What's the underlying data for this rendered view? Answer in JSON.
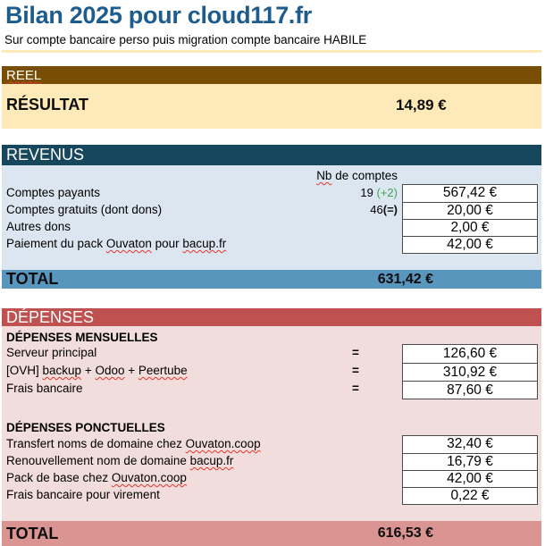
{
  "page": {
    "title": "Bilan 2025 pour cloud117.fr",
    "subtitle": "Sur compte bancaire perso puis migration compte bancaire HABILE"
  },
  "reel": {
    "header": "REEL",
    "result_label": "RÉSULTAT",
    "result_value": "14,89 €"
  },
  "revenus": {
    "header": "REVENUS",
    "count_column_header_segments": [
      {
        "text": "Nb",
        "sq": true
      },
      {
        "text": " de comptes"
      }
    ],
    "rows": [
      {
        "label": "Comptes payants",
        "count": "19",
        "delta": "(+2)",
        "value": "567,42 €"
      },
      {
        "label": "Comptes gratuits (dont dons)",
        "count": "46",
        "delta": "(=)",
        "value": "20,00 €"
      },
      {
        "label": "Autres dons",
        "value": "2,00 €"
      },
      {
        "label_segments": [
          {
            "text": "Paiement du pack "
          },
          {
            "text": "Ouvaton",
            "sq": true
          },
          {
            "text": " pour "
          },
          {
            "text": "bacup.fr",
            "sq": true
          }
        ],
        "value": "42,00 €"
      }
    ],
    "total_label": "TOTAL",
    "total_value": "631,42 €"
  },
  "depenses": {
    "header": "DÉPENSES",
    "monthly_header": "DÉPENSES MENSUELLES",
    "monthly_rows": [
      {
        "label": "Serveur principal",
        "operator": "=",
        "value": "126,60 €"
      },
      {
        "label_segments": [
          {
            "text": "[OVH] "
          },
          {
            "text": "backup",
            "sq": true
          },
          {
            "text": " + "
          },
          {
            "text": "Odoo",
            "sq": true
          },
          {
            "text": " + "
          },
          {
            "text": "Peertube",
            "sq": true
          }
        ],
        "operator": "=",
        "value": "310,92 €"
      },
      {
        "label": "Frais bancaire",
        "operator": "=",
        "value": "87,60 €"
      }
    ],
    "punctual_header": "DÉPENSES PONCTUELLES",
    "punctual_rows": [
      {
        "label_segments": [
          {
            "text": "Transfert noms de domaine chez "
          },
          {
            "text": "Ouvaton.coop",
            "sq": true
          }
        ],
        "value": "32,40 €"
      },
      {
        "label_segments": [
          {
            "text": "Renouvellement nom de domaine "
          },
          {
            "text": "bacup.fr",
            "sq": true
          }
        ],
        "value": "16,79 €"
      },
      {
        "label_segments": [
          {
            "text": "Pack de base chez "
          },
          {
            "text": "Ouvaton.coop",
            "sq": true
          }
        ],
        "value": "42,00 €"
      },
      {
        "label": "Frais bancaire pour virement",
        "value": "0,22 €"
      }
    ],
    "total_label": "TOTAL",
    "total_value": "616,53 €"
  },
  "colors": {
    "title_blue": "#1f5c8e",
    "reel_bar_brown": "#774e04",
    "reel_body_cream": "#fdeab8",
    "revenus_bar_teal": "#17475c",
    "revenus_body_blue": "#dce6f0",
    "revenus_total_blue": "#5996be",
    "depenses_bar_red": "#bf5151",
    "depenses_body_pink": "#f1dddb",
    "depenses_total_pink": "#da9592",
    "delta_green": "#42a152",
    "spellcheck_red": "#e8352c"
  }
}
